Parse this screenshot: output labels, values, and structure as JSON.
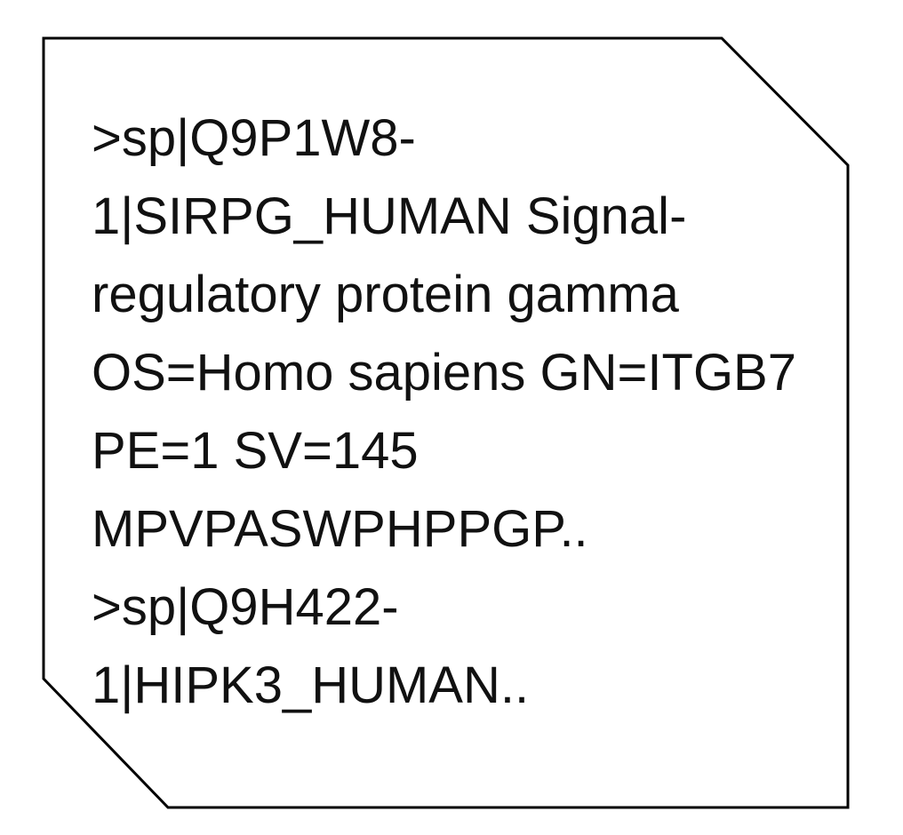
{
  "fasta_box": {
    "lines": [
      ">sp|Q9P1W8-",
      "1|SIRPG_HUMAN Signal-",
      "regulatory protein gamma",
      "OS=Homo sapiens GN=ITGB7",
      "PE=1 SV=145",
      "MPVPASWPHPPGP..",
      ">sp|Q9H422-",
      "1|HIPK3_HUMAN.."
    ]
  }
}
